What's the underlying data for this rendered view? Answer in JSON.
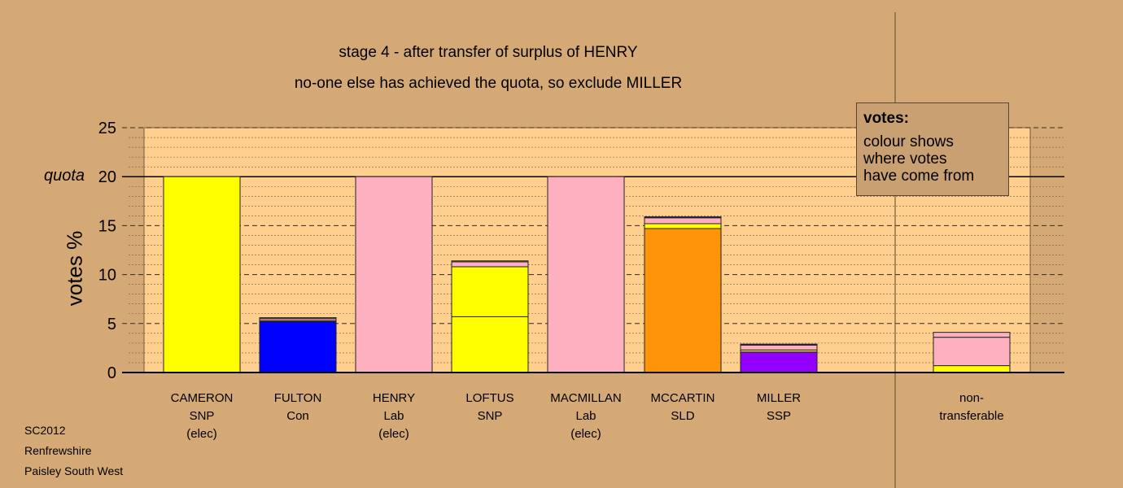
{
  "titles": {
    "line1": "stage 4 - after transfer of surplus of HENRY",
    "line2": "no-one else has achieved the quota, so exclude MILLER"
  },
  "axis": {
    "ylabel": "votes %",
    "quota_label": "quota",
    "ticks": [
      "0",
      "5",
      "10",
      "15",
      "20",
      "25"
    ]
  },
  "legend": {
    "title": "votes:",
    "line1": "colour shows",
    "line2": "where votes",
    "line3": "have come from"
  },
  "candidates": [
    {
      "name": "CAMERON",
      "party": "SNP",
      "status": "(elec)"
    },
    {
      "name": "FULTON",
      "party": "Con",
      "status": ""
    },
    {
      "name": "HENRY",
      "party": "Lab",
      "status": "(elec)"
    },
    {
      "name": "LOFTUS",
      "party": "SNP",
      "status": ""
    },
    {
      "name": "MACMILLAN",
      "party": "Lab",
      "status": "(elec)"
    },
    {
      "name": "MCCARTIN",
      "party": "SLD",
      "status": ""
    },
    {
      "name": "MILLER",
      "party": "SSP",
      "status": ""
    }
  ],
  "nontransferable": {
    "line1": "non-",
    "line2": "transferable"
  },
  "footer": {
    "line1": "SC2012",
    "line2": "Renfrewshire",
    "line3": "Paisley South West"
  },
  "colors": {
    "SNP": "#ffff00",
    "Con": "#0000ff",
    "Lab": "#ffb0c0",
    "SLD": "#ff9408",
    "SSP": "#9400ff",
    "background": "#d4a976",
    "plot_area": "#ffcf90"
  },
  "chart_data": {
    "type": "bar",
    "stacked": true,
    "ylim": [
      0,
      25
    ],
    "quota": 20,
    "ylabel": "votes %",
    "categories": [
      "CAMERON",
      "FULTON",
      "HENRY",
      "LOFTUS",
      "MACMILLAN",
      "MCCARTIN",
      "MILLER",
      "non-transferable"
    ],
    "stacks": [
      [
        {
          "from": "SNP",
          "value": 20.0
        }
      ],
      [
        {
          "from": "Con",
          "value": 5.2
        },
        {
          "from": "SNP",
          "value": 0.1
        },
        {
          "from": "Lab",
          "value": 0.2
        },
        {
          "from": "SLD",
          "value": 0.1
        }
      ],
      [
        {
          "from": "Lab",
          "value": 20.0
        }
      ],
      [
        {
          "from": "SNP",
          "value": 5.7
        },
        {
          "from": "SNP",
          "value": 5.1
        },
        {
          "from": "Lab",
          "value": 0.5
        },
        {
          "from": "SLD",
          "value": 0.1
        }
      ],
      [
        {
          "from": "Lab",
          "value": 20.0
        }
      ],
      [
        {
          "from": "SLD",
          "value": 14.7
        },
        {
          "from": "SNP",
          "value": 0.5
        },
        {
          "from": "Lab",
          "value": 0.6
        },
        {
          "from": "Con",
          "value": 0.1
        }
      ],
      [
        {
          "from": "SSP",
          "value": 2.1
        },
        {
          "from": "SNP",
          "value": 0.2
        },
        {
          "from": "Lab",
          "value": 0.5
        },
        {
          "from": "Con",
          "value": 0.1
        }
      ],
      [
        {
          "from": "SNP",
          "value": 0.7
        },
        {
          "from": "Lab",
          "value": 2.9
        },
        {
          "from": "Lab",
          "value": 0.5
        }
      ]
    ]
  }
}
